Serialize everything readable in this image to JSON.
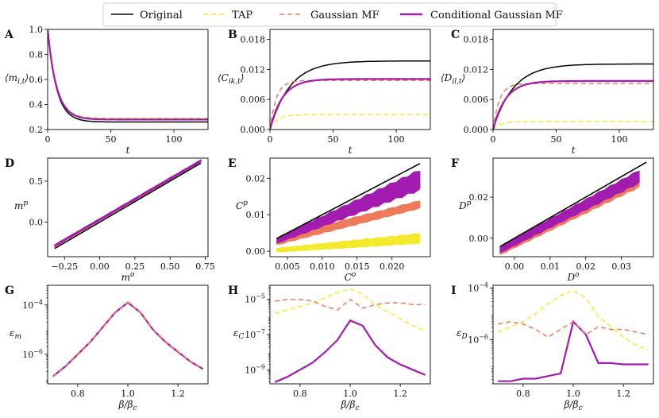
{
  "figure": {
    "legend": [
      {
        "label": "Original",
        "color": "#000000",
        "dash": "solid"
      },
      {
        "label": "TAP",
        "color": "#f2ea2a",
        "dash": "dashed"
      },
      {
        "label": "Gaussian MF",
        "color": "#ee7a5c",
        "dash": "dashed"
      },
      {
        "label": "Conditional Gaussian MF",
        "color": "#a21caf",
        "dash": "solid"
      }
    ]
  },
  "chart_data": [
    {
      "panel": "A",
      "type": "line",
      "xlabel": "t",
      "ylabel": "⟨m_{i,t}⟩",
      "xlim": [
        0,
        127
      ],
      "ylim": [
        0.2,
        1.0
      ],
      "xticks": [
        0,
        50,
        100
      ],
      "xtick_labels": [
        "0",
        "50",
        "100"
      ],
      "yticks": [
        0.2,
        0.4,
        0.6,
        0.8,
        1.0
      ],
      "ytick_labels": [
        "0.2",
        "0.4",
        "0.6",
        "0.8",
        "1.0"
      ],
      "series": [
        {
          "name": "Original",
          "kind": "exp",
          "start": 1.0,
          "end": 0.26,
          "tau": 7
        },
        {
          "name": "TAP",
          "kind": "exp",
          "start": 1.0,
          "end": 0.29,
          "tau": 7
        },
        {
          "name": "Gaussian MF",
          "kind": "exp",
          "start": 1.0,
          "end": 0.285,
          "tau": 7
        },
        {
          "name": "Conditional Gaussian MF",
          "kind": "exp",
          "start": 1.0,
          "end": 0.28,
          "tau": 7
        }
      ]
    },
    {
      "panel": "B",
      "type": "line",
      "xlabel": "t",
      "ylabel": "⟨C_{ik,t}⟩",
      "xlim": [
        0,
        127
      ],
      "ylim": [
        0,
        0.02
      ],
      "xticks": [
        0,
        50,
        100
      ],
      "xtick_labels": [
        "0",
        "50",
        "100"
      ],
      "yticks": [
        0,
        0.006,
        0.012,
        0.018
      ],
      "ytick_labels": [
        "0.000",
        "0.006",
        "0.012",
        "0.018"
      ],
      "series": [
        {
          "name": "Original",
          "kind": "sat",
          "start": 0,
          "end": 0.0137,
          "tau": 16
        },
        {
          "name": "TAP",
          "kind": "sat",
          "start": 0,
          "end": 0.003,
          "tau": 6
        },
        {
          "name": "Gaussian MF",
          "kind": "sat",
          "start": 0,
          "end": 0.0098,
          "tau": 5
        },
        {
          "name": "Conditional Gaussian MF",
          "kind": "sat",
          "start": 0,
          "end": 0.0101,
          "tau": 10
        }
      ]
    },
    {
      "panel": "C",
      "type": "line",
      "xlabel": "t",
      "ylabel": "⟨D_{il,t}⟩",
      "xlim": [
        0,
        127
      ],
      "ylim": [
        0,
        0.02
      ],
      "xticks": [
        0,
        50,
        100
      ],
      "xtick_labels": [
        "0",
        "50",
        "100"
      ],
      "yticks": [
        0,
        0.006,
        0.012,
        0.018
      ],
      "ytick_labels": [
        "0.000",
        "0.006",
        "0.012",
        "0.018"
      ],
      "series": [
        {
          "name": "Original",
          "kind": "sat",
          "start": 0,
          "end": 0.0131,
          "tau": 16
        },
        {
          "name": "TAP",
          "kind": "sat",
          "start": 0,
          "end": 0.0016,
          "tau": 6
        },
        {
          "name": "Gaussian MF",
          "kind": "sat",
          "start": 0,
          "end": 0.0092,
          "tau": 5
        },
        {
          "name": "Conditional Gaussian MF",
          "kind": "sat",
          "start": 0,
          "end": 0.0097,
          "tau": 10
        }
      ]
    },
    {
      "panel": "D",
      "type": "scatter",
      "xlabel": "m^o",
      "ylabel": "m^p",
      "xlim": [
        -0.37,
        0.77
      ],
      "ylim": [
        -0.42,
        0.78
      ],
      "xticks": [
        -0.25,
        0,
        0.25,
        0.5,
        0.75
      ],
      "xtick_labels": [
        "−0.25",
        "0.00",
        "0.25",
        "0.50",
        "0.75"
      ],
      "yticks": [
        0,
        0.5
      ],
      "ytick_labels": [
        "0.0",
        "0.5"
      ],
      "diagonal": {
        "from": [
          -0.32,
          -0.32
        ],
        "to": [
          0.72,
          0.72
        ]
      },
      "bands": [
        {
          "name": "Gaussian MF",
          "x_range": [
            -0.32,
            0.72
          ],
          "lo": [
            -0.3,
            0.735
          ],
          "hi": [
            -0.28,
            0.755
          ]
        },
        {
          "name": "Conditional Gaussian MF",
          "x_range": [
            -0.32,
            0.72
          ],
          "lo": [
            -0.295,
            0.74
          ],
          "hi": [
            -0.275,
            0.76
          ]
        }
      ]
    },
    {
      "panel": "E",
      "type": "scatter",
      "xlabel": "C^o",
      "ylabel": "C^p",
      "xlim": [
        0.0025,
        0.0255
      ],
      "ylim": [
        -0.0015,
        0.0255
      ],
      "xticks": [
        0.005,
        0.01,
        0.015,
        0.02
      ],
      "xtick_labels": [
        "0.005",
        "0.010",
        "0.015",
        "0.020"
      ],
      "yticks": [
        0,
        0.01,
        0.02
      ],
      "ytick_labels": [
        "0.00",
        "0.01",
        "0.02"
      ],
      "diagonal": {
        "from": [
          0.0035,
          0.0035
        ],
        "to": [
          0.024,
          0.024
        ]
      },
      "bands": [
        {
          "name": "Gaussian MF",
          "x_range": [
            0.0035,
            0.024
          ],
          "lo": [
            0.0018,
            0.0118
          ],
          "hi": [
            0.0038,
            0.0138
          ]
        },
        {
          "name": "Conditional Gaussian MF",
          "x_range": [
            0.0035,
            0.024
          ],
          "lo": [
            0.0022,
            0.0168
          ],
          "hi": [
            0.0036,
            0.0222
          ]
        },
        {
          "name": "TAP",
          "x_range": [
            0.0035,
            0.024
          ],
          "lo": [
            -0.0002,
            0.0022
          ],
          "hi": [
            0.0008,
            0.0048
          ]
        }
      ]
    },
    {
      "panel": "F",
      "type": "scatter",
      "xlabel": "D^o",
      "ylabel": "D^p",
      "xlim": [
        -0.006,
        0.039
      ],
      "ylim": [
        -0.009,
        0.039
      ],
      "xticks": [
        0,
        0.01,
        0.02,
        0.03
      ],
      "xtick_labels": [
        "0.00",
        "0.01",
        "0.02",
        "0.03"
      ],
      "yticks": [
        0,
        0.02
      ],
      "ytick_labels": [
        "0.00",
        "0.02"
      ],
      "diagonal": {
        "from": [
          -0.004,
          -0.004
        ],
        "to": [
          0.037,
          0.037
        ]
      },
      "bands": [
        {
          "name": "Gaussian MF",
          "x_range": [
            -0.004,
            0.035
          ],
          "lo": [
            -0.008,
            0.025
          ],
          "hi": [
            -0.005,
            0.031
          ]
        },
        {
          "name": "Conditional Gaussian MF",
          "x_range": [
            -0.004,
            0.035
          ],
          "lo": [
            -0.007,
            0.027
          ],
          "hi": [
            -0.004,
            0.033
          ]
        }
      ]
    },
    {
      "panel": "G",
      "type": "line",
      "yscale": "log",
      "xlabel": "β/β_c",
      "ylabel": "ε_m",
      "xlim": [
        0.68,
        1.32
      ],
      "ylim_log10": [
        -7.2,
        -3.2
      ],
      "xticks": [
        0.8,
        1.0,
        1.2
      ],
      "xtick_labels": [
        "0.8",
        "1.0",
        "1.2"
      ],
      "yticks_log10": [
        -6,
        -4
      ],
      "x": [
        0.7,
        0.75,
        0.8,
        0.85,
        0.9,
        0.95,
        1.0,
        1.05,
        1.1,
        1.15,
        1.2,
        1.25,
        1.3
      ],
      "series": [
        {
          "name": "Gaussian MF",
          "log10": [
            -6.9,
            -6.5,
            -6.0,
            -5.5,
            -4.9,
            -4.3,
            -3.9,
            -4.3,
            -5.0,
            -5.5,
            -5.9,
            -6.3,
            -6.6
          ]
        },
        {
          "name": "Conditional Gaussian MF",
          "log10": [
            -6.9,
            -6.5,
            -6.0,
            -5.5,
            -4.9,
            -4.3,
            -3.9,
            -4.3,
            -5.0,
            -5.5,
            -5.9,
            -6.3,
            -6.6
          ]
        }
      ]
    },
    {
      "panel": "H",
      "type": "line",
      "yscale": "log",
      "xlabel": "β/β_c",
      "ylabel": "ε_C",
      "xlim": [
        0.68,
        1.32
      ],
      "ylim_log10": [
        -9.8,
        -4.2
      ],
      "xticks": [
        0.8,
        1.0,
        1.2
      ],
      "xtick_labels": [
        "0.8",
        "1.0",
        "1.2"
      ],
      "yticks_log10": [
        -9,
        -7,
        -5
      ],
      "x": [
        0.7,
        0.75,
        0.8,
        0.85,
        0.9,
        0.95,
        1.0,
        1.05,
        1.1,
        1.15,
        1.2,
        1.25,
        1.3
      ],
      "series": [
        {
          "name": "TAP",
          "log10": [
            -5.8,
            -5.6,
            -5.4,
            -5.2,
            -4.9,
            -4.6,
            -4.4,
            -4.7,
            -5.3,
            -5.7,
            -6.1,
            -6.5,
            -6.8
          ]
        },
        {
          "name": "Gaussian MF",
          "log10": [
            -5.1,
            -5.0,
            -5.0,
            -5.1,
            -5.4,
            -5.6,
            -5.0,
            -5.5,
            -5.3,
            -5.2,
            -5.2,
            -5.3,
            -5.3
          ]
        },
        {
          "name": "Conditional Gaussian MF",
          "log10": [
            -9.7,
            -9.4,
            -9.0,
            -8.6,
            -8.0,
            -7.3,
            -6.2,
            -6.5,
            -7.6,
            -8.3,
            -8.7,
            -9.0,
            -9.3
          ]
        }
      ]
    },
    {
      "panel": "I",
      "type": "line",
      "yscale": "log",
      "xlabel": "β/β_c",
      "ylabel": "ε_D",
      "xlim": [
        0.68,
        1.32
      ],
      "ylim_log10": [
        -7.7,
        -3.9
      ],
      "xticks": [
        0.8,
        1.0,
        1.2
      ],
      "xtick_labels": [
        "0.8",
        "1.0",
        "1.2"
      ],
      "yticks_log10": [
        -6,
        -4
      ],
      "x": [
        0.7,
        0.75,
        0.8,
        0.85,
        0.9,
        0.95,
        1.0,
        1.05,
        1.1,
        1.15,
        1.2,
        1.25,
        1.3
      ],
      "series": [
        {
          "name": "TAP",
          "log10": [
            -5.7,
            -5.5,
            -5.3,
            -5.0,
            -4.6,
            -4.3,
            -4.1,
            -4.4,
            -5.1,
            -5.5,
            -5.9,
            -6.2,
            -6.4
          ]
        },
        {
          "name": "Gaussian MF",
          "log10": [
            -5.4,
            -5.3,
            -5.4,
            -5.6,
            -5.9,
            -5.6,
            -5.3,
            -5.8,
            -5.5,
            -5.6,
            -5.6,
            -5.7,
            -5.8
          ]
        },
        {
          "name": "Conditional Gaussian MF",
          "log10": [
            -7.6,
            -7.6,
            -7.5,
            -7.5,
            -7.4,
            -7.3,
            -5.3,
            -5.8,
            -6.9,
            -6.9,
            -6.95,
            -6.95,
            -6.95
          ]
        }
      ]
    }
  ]
}
